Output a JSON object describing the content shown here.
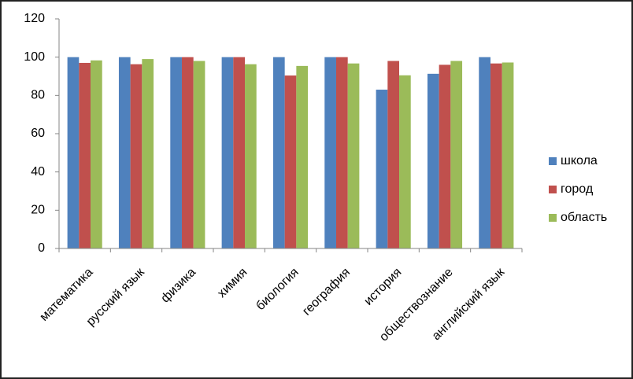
{
  "chart_data": {
    "type": "bar",
    "categories": [
      "математика",
      "русский язык",
      "физика",
      "химия",
      "биология",
      "география",
      "история",
      "обществознание",
      "английский язык"
    ],
    "series": [
      {
        "name": "школа",
        "color": "#4f81bd",
        "values": [
          100,
          100,
          100,
          100,
          100,
          100,
          83,
          91.3,
          100
        ]
      },
      {
        "name": "город",
        "color": "#c0504d",
        "values": [
          97,
          96.3,
          100,
          100,
          90.4,
          100,
          98,
          96,
          96.7
        ]
      },
      {
        "name": "область",
        "color": "#9bbb59",
        "values": [
          98.3,
          99,
          98,
          96.3,
          95.4,
          96.7,
          90.5,
          98,
          97.2
        ]
      }
    ],
    "ylim": [
      0,
      120
    ],
    "yticks": [
      0,
      20,
      40,
      60,
      80,
      100,
      120
    ],
    "grid": false,
    "legend": "right"
  }
}
